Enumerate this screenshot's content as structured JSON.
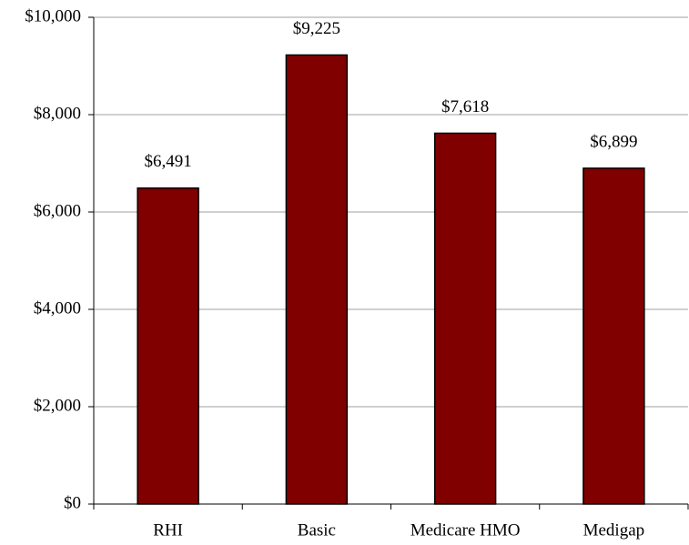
{
  "chart_data": {
    "type": "bar",
    "categories": [
      "RHI",
      "Basic",
      "Medicare HMO",
      "Medigap"
    ],
    "values": [
      6491,
      9225,
      7618,
      6899
    ],
    "value_labels": [
      "$6,491",
      "$9,225",
      "$7,618",
      "$6,899"
    ],
    "color": "#800000",
    "ylim": [
      0,
      10000
    ],
    "yticks": [
      {
        "value": 0,
        "label": "$0"
      },
      {
        "value": 2000,
        "label": "$2,000"
      },
      {
        "value": 4000,
        "label": "$4,000"
      },
      {
        "value": 6000,
        "label": "$6,000"
      },
      {
        "value": 8000,
        "label": "$8,000"
      },
      {
        "value": 10000,
        "label": "$10,000"
      }
    ],
    "grid": true
  }
}
